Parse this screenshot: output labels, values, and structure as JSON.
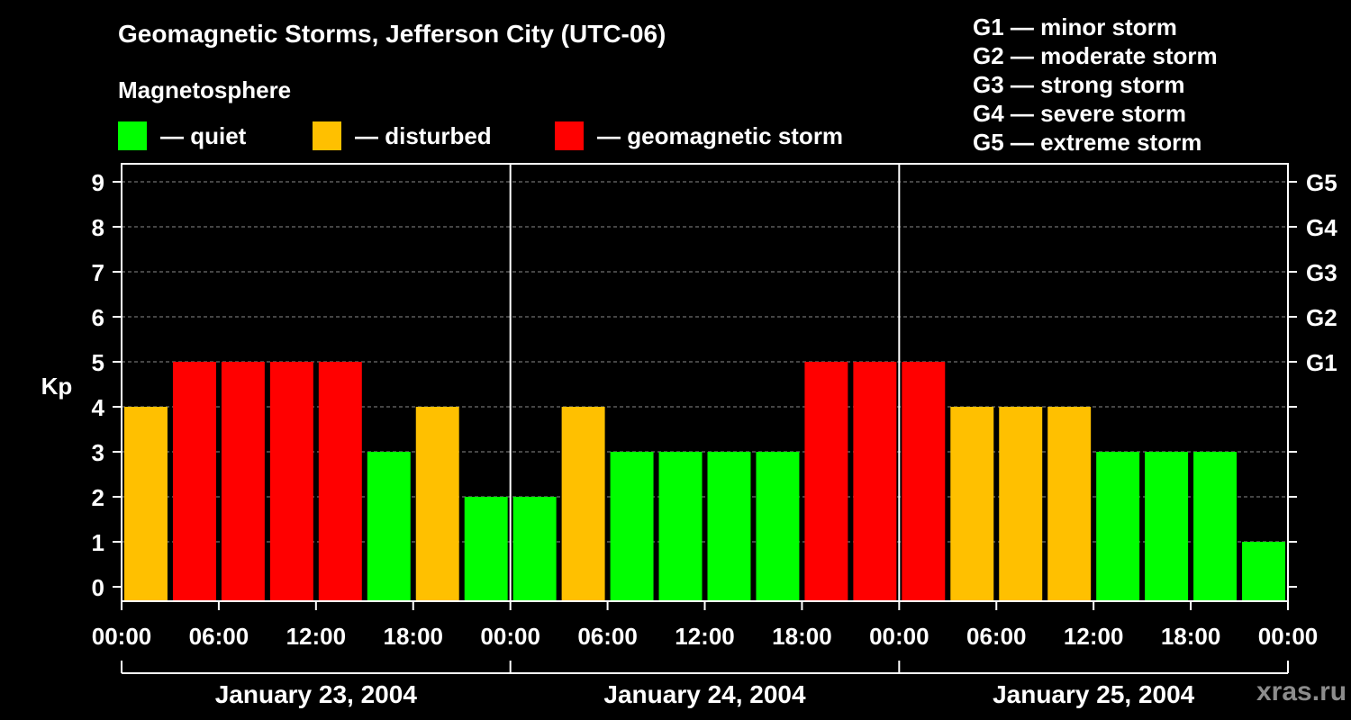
{
  "title": "Geomagnetic Storms, Jefferson City (UTC-06)",
  "subtitle": "Magnetosphere",
  "legend": [
    {
      "color": "#00ff00",
      "label": "— quiet"
    },
    {
      "color": "#ffc000",
      "label": "— disturbed"
    },
    {
      "color": "#ff0000",
      "label": "— geomagnetic storm"
    }
  ],
  "g_scale": [
    {
      "label": "G1 — minor storm"
    },
    {
      "label": "G2 — moderate storm"
    },
    {
      "label": "G3 — strong storm"
    },
    {
      "label": "G4 — severe storm"
    },
    {
      "label": "G5 — extreme storm"
    }
  ],
  "watermark": "xras.ru",
  "chart_data": {
    "type": "bar",
    "ylabel": "Kp",
    "ylim": [
      0,
      9
    ],
    "yticks": [
      0,
      1,
      2,
      3,
      4,
      5,
      6,
      7,
      8,
      9
    ],
    "right_axis": [
      {
        "kp": 5,
        "label": "G1"
      },
      {
        "kp": 6,
        "label": "G2"
      },
      {
        "kp": 7,
        "label": "G3"
      },
      {
        "kp": 8,
        "label": "G4"
      },
      {
        "kp": 9,
        "label": "G5"
      }
    ],
    "grid": true,
    "xticks": [
      "00:00",
      "06:00",
      "12:00",
      "18:00",
      "00:00",
      "06:00",
      "12:00",
      "18:00",
      "00:00",
      "06:00",
      "12:00",
      "18:00",
      "00:00"
    ],
    "days": [
      "January 23, 2004",
      "January 24, 2004",
      "January 25, 2004"
    ],
    "colors": {
      "quiet": "#00ff00",
      "disturbed": "#ffc000",
      "storm": "#ff0000"
    },
    "series": [
      {
        "values": [
          4,
          5,
          5,
          5,
          5,
          3,
          4,
          2,
          2,
          4,
          3,
          3,
          3,
          3,
          5,
          5,
          5,
          4,
          4,
          4,
          3,
          3,
          3,
          1
        ]
      }
    ]
  }
}
